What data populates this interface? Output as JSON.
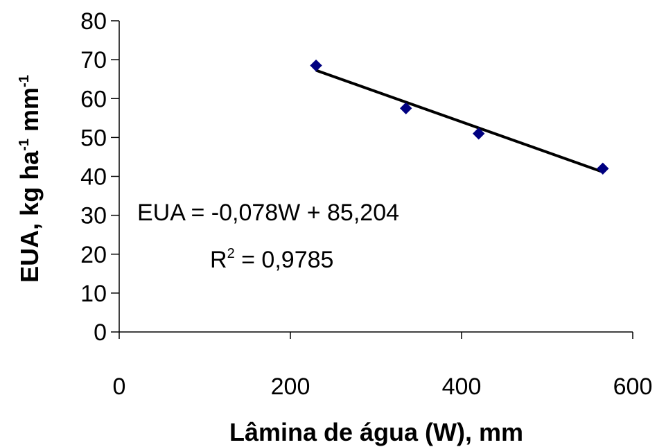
{
  "chart_data": {
    "type": "scatter",
    "xlabel": "Lâmina de água (W), mm",
    "ylabel": {
      "base": "EUA, kg ha",
      "sup1": "-1",
      "mid": " mm",
      "sup2": "-1"
    },
    "xlim": [
      0,
      600
    ],
    "ylim": [
      0,
      80
    ],
    "x_ticks": [
      "0",
      "200",
      "400",
      "600"
    ],
    "y_ticks": [
      "0",
      "10",
      "20",
      "30",
      "40",
      "50",
      "60",
      "70",
      "80"
    ],
    "grid": false,
    "legend": "none",
    "series": [
      {
        "marker": "diamond",
        "color": "#000080",
        "points": [
          {
            "x": 230,
            "y": 68.5
          },
          {
            "x": 335,
            "y": 57.5
          },
          {
            "x": 420,
            "y": 51
          },
          {
            "x": 565,
            "y": 42
          }
        ]
      }
    ],
    "trendline": {
      "slope": -0.078,
      "intercept": 85.204,
      "x_range": [
        230,
        565
      ],
      "color": "#000000"
    },
    "annotations": {
      "equation": "EUA = -0,078W + 85,204",
      "r2_prefix": "R",
      "r2_sup": "2",
      "r2_value": " = 0,9785"
    }
  }
}
